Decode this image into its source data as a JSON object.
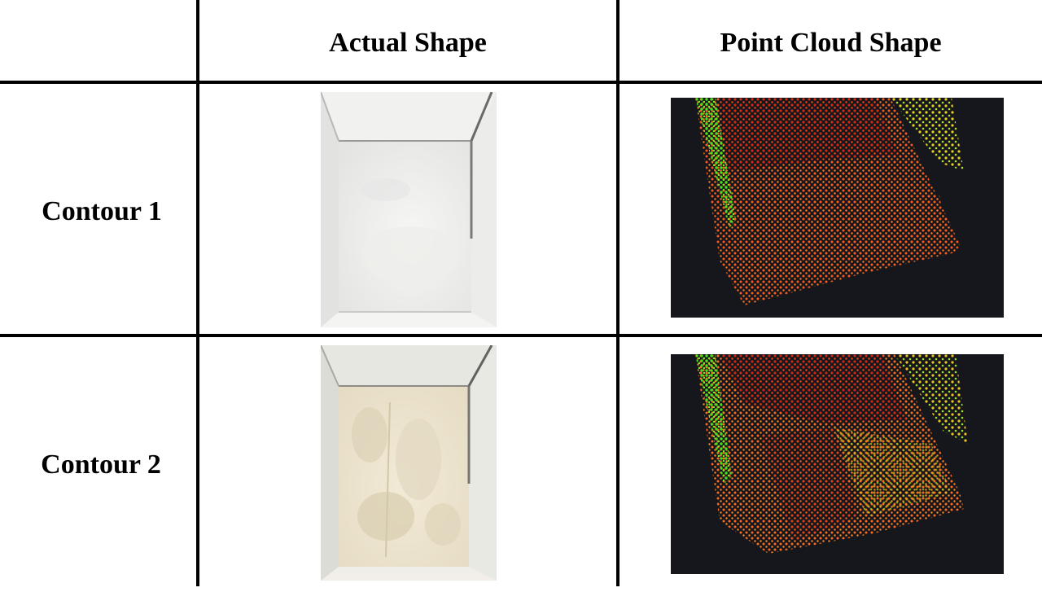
{
  "table": {
    "headers": [
      "",
      "Actual Shape",
      "Point Cloud Shape"
    ],
    "rows": [
      {
        "label": "Contour 1",
        "actual_image": "photo of white powder surface inside a bin",
        "point_cloud_image": "colored point cloud rendering"
      },
      {
        "label": "Contour 2",
        "actual_image": "photo of uneven cream powder surface inside a bin",
        "point_cloud_image": "colored point cloud rendering"
      }
    ]
  }
}
